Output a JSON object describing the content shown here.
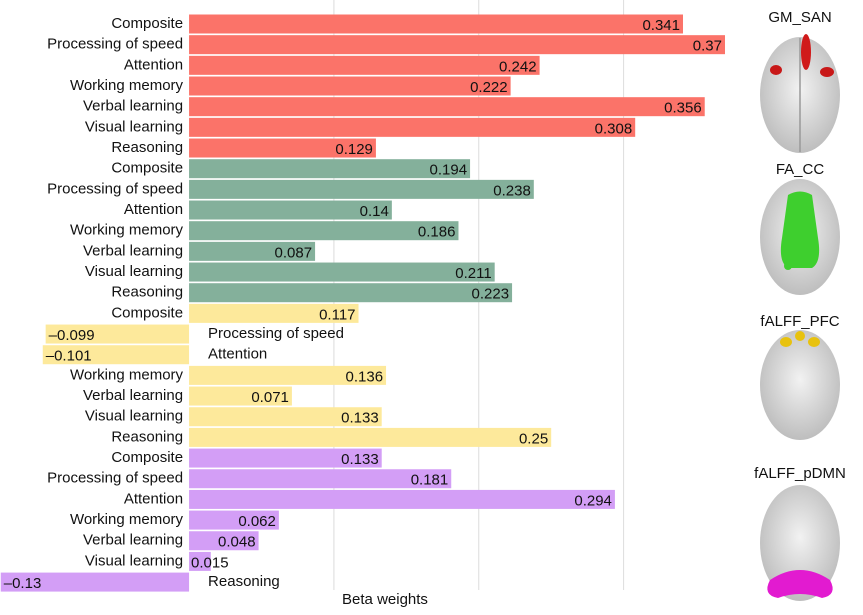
{
  "chart_data": {
    "type": "bar",
    "orientation": "horizontal",
    "x_label": "Beta weights",
    "categories": [
      "Composite",
      "Processing of speed",
      "Attention",
      "Working memory",
      "Verbal learning",
      "Visual learning",
      "Reasoning"
    ],
    "series": [
      {
        "name": "GM_SAN",
        "color": "#fb7369",
        "values": [
          0.341,
          0.37,
          0.242,
          0.222,
          0.356,
          0.308,
          0.129
        ],
        "value_labels": [
          "0.341",
          "0.37",
          "0.242",
          "0.222",
          "0.356",
          "0.308",
          "0.129"
        ]
      },
      {
        "name": "FA_CC",
        "color": "#84b09b",
        "values": [
          0.194,
          0.238,
          0.14,
          0.186,
          0.087,
          0.211,
          0.223
        ],
        "value_labels": [
          "0.194",
          "0.238",
          "0.14",
          "0.186",
          "0.087",
          "0.211",
          "0.223"
        ]
      },
      {
        "name": "fALFF_PFC",
        "color": "#fde99b",
        "values": [
          0.117,
          -0.099,
          -0.101,
          0.136,
          0.071,
          0.133,
          0.25
        ],
        "value_labels": [
          "0.117",
          "–0.099",
          "–0.101",
          "0.136",
          "0.071",
          "0.133",
          "0.25"
        ]
      },
      {
        "name": "fALFF_pDMN",
        "color": "#d39ef6",
        "values": [
          0.133,
          0.181,
          0.294,
          0.062,
          0.048,
          0.015,
          -0.13
        ],
        "value_labels": [
          "0.133",
          "0.181",
          "0.294",
          "0.062",
          "0.048",
          "0.015",
          "–0.13"
        ]
      }
    ],
    "xlim": [
      -0.125,
      0.37
    ],
    "grid_lines": [
      0.1,
      0.2,
      0.3
    ],
    "grid": true
  }
}
